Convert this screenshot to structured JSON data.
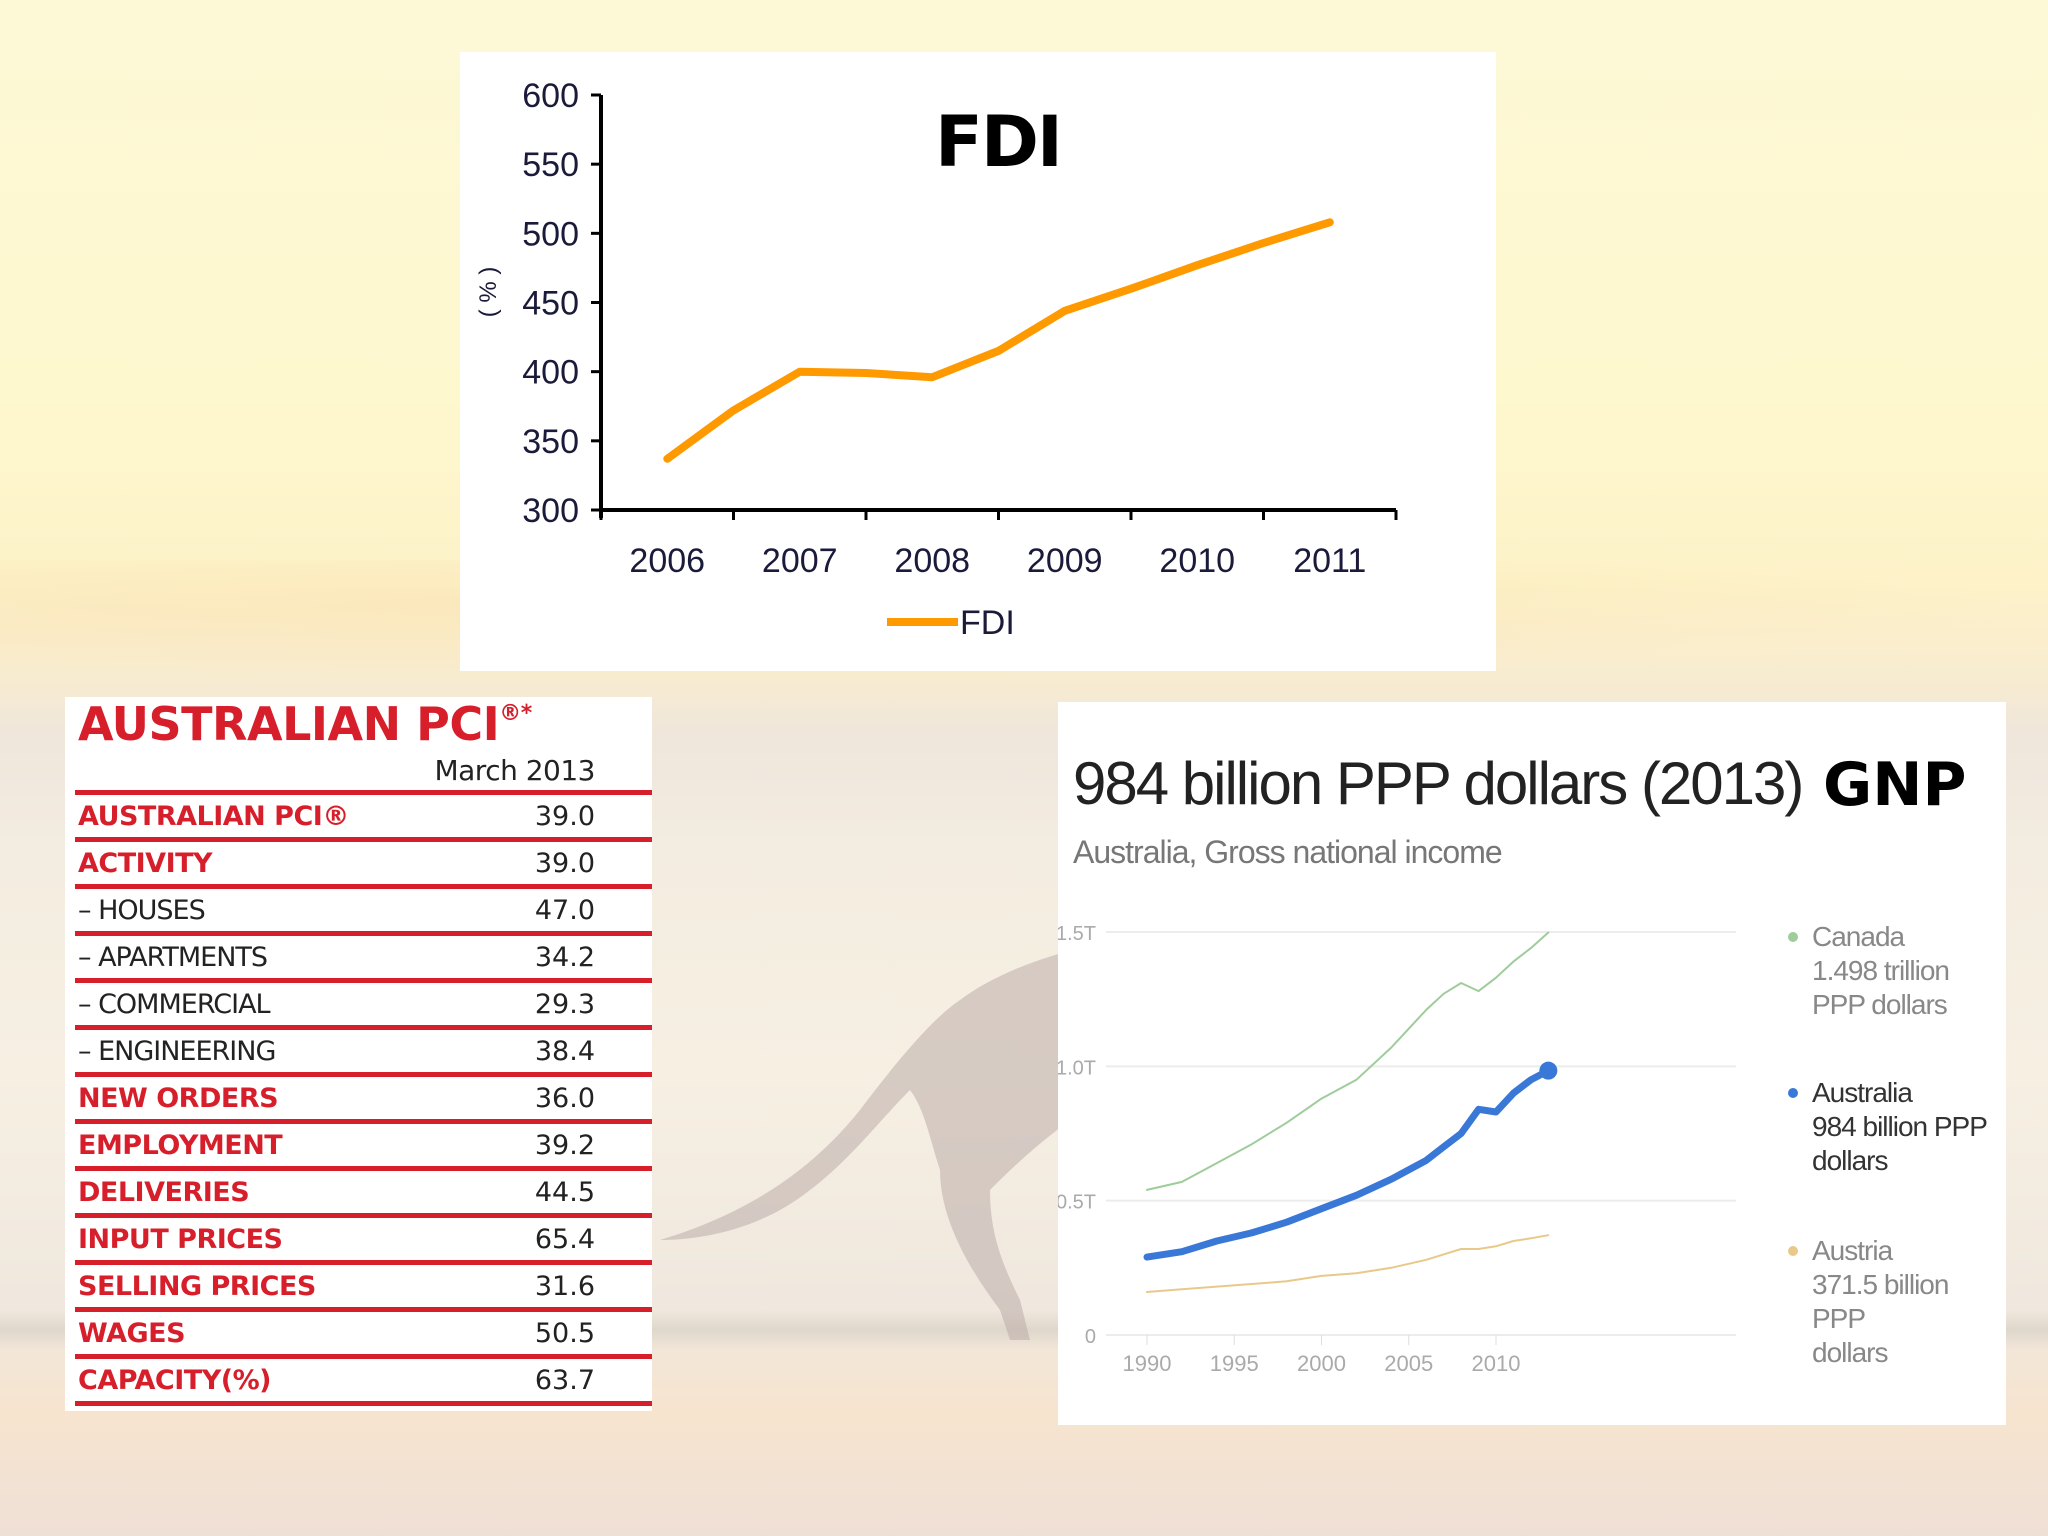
{
  "colors": {
    "fdi_line": "#ff9900",
    "pci_red": "#d71f2b",
    "canada": "#9fcc9b",
    "australia": "#3a78d8",
    "austria": "#e8c98a"
  },
  "fdi_panel": {
    "title": "FDI",
    "ylabel": "( % )",
    "legend_label": "FDI"
  },
  "pci_table": {
    "title": "AUSTRALIAN PCI",
    "title_suffix": "®*",
    "period": "March 2013",
    "rows": [
      {
        "label": "AUSTRALIAN PCI®",
        "value": "39.0",
        "style": "major"
      },
      {
        "label": "ACTIVITY",
        "value": "39.0",
        "style": "major"
      },
      {
        "label": "– HOUSES",
        "value": "47.0",
        "style": "minor"
      },
      {
        "label": "– APARTMENTS",
        "value": "34.2",
        "style": "minor"
      },
      {
        "label": "– COMMERCIAL",
        "value": "29.3",
        "style": "minor"
      },
      {
        "label": "– ENGINEERING",
        "value": "38.4",
        "style": "minor"
      },
      {
        "label": "NEW ORDERS",
        "value": "36.0",
        "style": "major"
      },
      {
        "label": "EMPLOYMENT",
        "value": "39.2",
        "style": "major"
      },
      {
        "label": "DELIVERIES",
        "value": "44.5",
        "style": "major"
      },
      {
        "label": "INPUT PRICES",
        "value": "65.4",
        "style": "major"
      },
      {
        "label": "SELLING PRICES",
        "value": "31.6",
        "style": "major"
      },
      {
        "label": "WAGES",
        "value": "50.5",
        "style": "major"
      },
      {
        "label": "CAPACITY(%)",
        "value": "63.7",
        "style": "major"
      }
    ]
  },
  "gnp_panel": {
    "headline": "984 billion PPP dollars (2013)",
    "tag": "GNP",
    "subtitle": "Australia, Gross national income",
    "legend": [
      {
        "name": "Canada",
        "line1": "1.498 trillion",
        "line2": "PPP dollars"
      },
      {
        "name": "Australia",
        "line1": "984 billion PPP",
        "line2": "dollars"
      },
      {
        "name": "Austria",
        "line1": "371.5 billion PPP",
        "line2": "dollars"
      }
    ]
  },
  "chart_data": [
    {
      "type": "line",
      "title": "FDI",
      "xlabel": "",
      "ylabel": "( % )",
      "categories": [
        "2006",
        "2007",
        "2008",
        "2009",
        "2010",
        "2011"
      ],
      "x": [
        2006,
        2006.5,
        2007,
        2007.5,
        2008,
        2008.5,
        2009,
        2009.5,
        2010,
        2010.5,
        2011
      ],
      "series": [
        {
          "name": "FDI",
          "values": [
            337,
            372,
            400,
            399,
            396,
            415,
            444,
            460,
            477,
            493,
            508
          ]
        }
      ],
      "yticks": [
        300,
        350,
        400,
        450,
        500,
        550,
        600
      ],
      "ylim": [
        300,
        600
      ],
      "grid": false,
      "legend_position": "bottom"
    },
    {
      "type": "line",
      "title": "984 billion PPP dollars (2013)",
      "subtitle": "Australia, Gross national income",
      "xlabel": "",
      "ylabel": "",
      "x": [
        1990,
        1992,
        1994,
        1996,
        1998,
        2000,
        2002,
        2004,
        2006,
        2007,
        2008,
        2009,
        2010,
        2011,
        2012,
        2013
      ],
      "xticks": [
        "1990",
        "1995",
        "2000",
        "2005",
        "2010"
      ],
      "yticks": [
        "0",
        "0.5T",
        "1.0T",
        "1.5T"
      ],
      "ylim": [
        0,
        1.5
      ],
      "grid": true,
      "legend_position": "right",
      "series": [
        {
          "name": "Canada",
          "values": [
            0.54,
            0.57,
            0.64,
            0.71,
            0.79,
            0.88,
            0.95,
            1.07,
            1.21,
            1.27,
            1.31,
            1.28,
            1.33,
            1.39,
            1.44,
            1.498
          ]
        },
        {
          "name": "Australia",
          "values": [
            0.29,
            0.31,
            0.35,
            0.38,
            0.42,
            0.47,
            0.52,
            0.58,
            0.65,
            0.7,
            0.75,
            0.84,
            0.83,
            0.9,
            0.95,
            0.984
          ]
        },
        {
          "name": "Austria",
          "values": [
            0.16,
            0.17,
            0.18,
            0.19,
            0.2,
            0.22,
            0.23,
            0.25,
            0.28,
            0.3,
            0.32,
            0.32,
            0.33,
            0.35,
            0.36,
            0.3715
          ]
        }
      ]
    }
  ]
}
